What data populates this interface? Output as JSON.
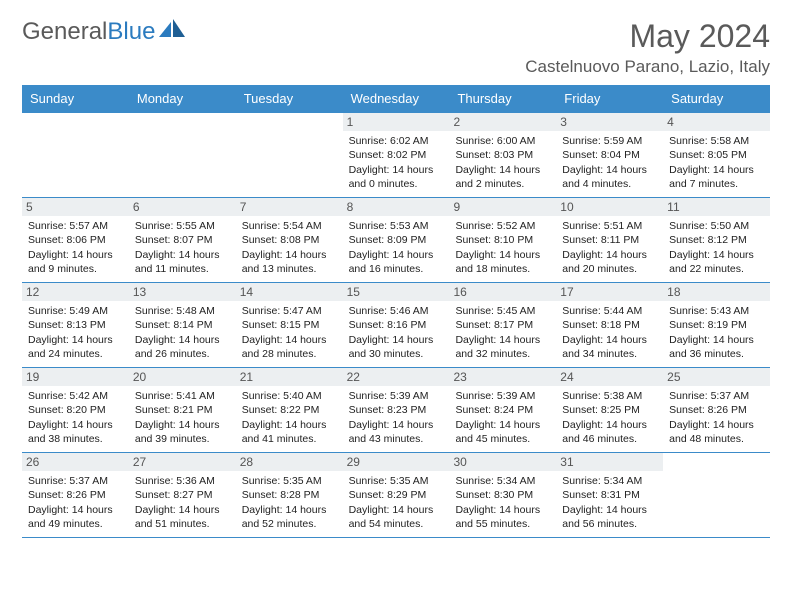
{
  "brand": {
    "part1": "General",
    "part2": "Blue"
  },
  "title": "May 2024",
  "location": "Castelnuovo Parano, Lazio, Italy",
  "colors": {
    "header_bg": "#3b8bc9",
    "header_text": "#ffffff",
    "daynum_bg": "#eceff1",
    "border": "#3b8bc9",
    "title_color": "#5a5a5a"
  },
  "weekdays": [
    "Sunday",
    "Monday",
    "Tuesday",
    "Wednesday",
    "Thursday",
    "Friday",
    "Saturday"
  ],
  "weeks": [
    [
      null,
      null,
      null,
      {
        "n": "1",
        "sr": "Sunrise: 6:02 AM",
        "ss": "Sunset: 8:02 PM",
        "d1": "Daylight: 14 hours",
        "d2": "and 0 minutes."
      },
      {
        "n": "2",
        "sr": "Sunrise: 6:00 AM",
        "ss": "Sunset: 8:03 PM",
        "d1": "Daylight: 14 hours",
        "d2": "and 2 minutes."
      },
      {
        "n": "3",
        "sr": "Sunrise: 5:59 AM",
        "ss": "Sunset: 8:04 PM",
        "d1": "Daylight: 14 hours",
        "d2": "and 4 minutes."
      },
      {
        "n": "4",
        "sr": "Sunrise: 5:58 AM",
        "ss": "Sunset: 8:05 PM",
        "d1": "Daylight: 14 hours",
        "d2": "and 7 minutes."
      }
    ],
    [
      {
        "n": "5",
        "sr": "Sunrise: 5:57 AM",
        "ss": "Sunset: 8:06 PM",
        "d1": "Daylight: 14 hours",
        "d2": "and 9 minutes."
      },
      {
        "n": "6",
        "sr": "Sunrise: 5:55 AM",
        "ss": "Sunset: 8:07 PM",
        "d1": "Daylight: 14 hours",
        "d2": "and 11 minutes."
      },
      {
        "n": "7",
        "sr": "Sunrise: 5:54 AM",
        "ss": "Sunset: 8:08 PM",
        "d1": "Daylight: 14 hours",
        "d2": "and 13 minutes."
      },
      {
        "n": "8",
        "sr": "Sunrise: 5:53 AM",
        "ss": "Sunset: 8:09 PM",
        "d1": "Daylight: 14 hours",
        "d2": "and 16 minutes."
      },
      {
        "n": "9",
        "sr": "Sunrise: 5:52 AM",
        "ss": "Sunset: 8:10 PM",
        "d1": "Daylight: 14 hours",
        "d2": "and 18 minutes."
      },
      {
        "n": "10",
        "sr": "Sunrise: 5:51 AM",
        "ss": "Sunset: 8:11 PM",
        "d1": "Daylight: 14 hours",
        "d2": "and 20 minutes."
      },
      {
        "n": "11",
        "sr": "Sunrise: 5:50 AM",
        "ss": "Sunset: 8:12 PM",
        "d1": "Daylight: 14 hours",
        "d2": "and 22 minutes."
      }
    ],
    [
      {
        "n": "12",
        "sr": "Sunrise: 5:49 AM",
        "ss": "Sunset: 8:13 PM",
        "d1": "Daylight: 14 hours",
        "d2": "and 24 minutes."
      },
      {
        "n": "13",
        "sr": "Sunrise: 5:48 AM",
        "ss": "Sunset: 8:14 PM",
        "d1": "Daylight: 14 hours",
        "d2": "and 26 minutes."
      },
      {
        "n": "14",
        "sr": "Sunrise: 5:47 AM",
        "ss": "Sunset: 8:15 PM",
        "d1": "Daylight: 14 hours",
        "d2": "and 28 minutes."
      },
      {
        "n": "15",
        "sr": "Sunrise: 5:46 AM",
        "ss": "Sunset: 8:16 PM",
        "d1": "Daylight: 14 hours",
        "d2": "and 30 minutes."
      },
      {
        "n": "16",
        "sr": "Sunrise: 5:45 AM",
        "ss": "Sunset: 8:17 PM",
        "d1": "Daylight: 14 hours",
        "d2": "and 32 minutes."
      },
      {
        "n": "17",
        "sr": "Sunrise: 5:44 AM",
        "ss": "Sunset: 8:18 PM",
        "d1": "Daylight: 14 hours",
        "d2": "and 34 minutes."
      },
      {
        "n": "18",
        "sr": "Sunrise: 5:43 AM",
        "ss": "Sunset: 8:19 PM",
        "d1": "Daylight: 14 hours",
        "d2": "and 36 minutes."
      }
    ],
    [
      {
        "n": "19",
        "sr": "Sunrise: 5:42 AM",
        "ss": "Sunset: 8:20 PM",
        "d1": "Daylight: 14 hours",
        "d2": "and 38 minutes."
      },
      {
        "n": "20",
        "sr": "Sunrise: 5:41 AM",
        "ss": "Sunset: 8:21 PM",
        "d1": "Daylight: 14 hours",
        "d2": "and 39 minutes."
      },
      {
        "n": "21",
        "sr": "Sunrise: 5:40 AM",
        "ss": "Sunset: 8:22 PM",
        "d1": "Daylight: 14 hours",
        "d2": "and 41 minutes."
      },
      {
        "n": "22",
        "sr": "Sunrise: 5:39 AM",
        "ss": "Sunset: 8:23 PM",
        "d1": "Daylight: 14 hours",
        "d2": "and 43 minutes."
      },
      {
        "n": "23",
        "sr": "Sunrise: 5:39 AM",
        "ss": "Sunset: 8:24 PM",
        "d1": "Daylight: 14 hours",
        "d2": "and 45 minutes."
      },
      {
        "n": "24",
        "sr": "Sunrise: 5:38 AM",
        "ss": "Sunset: 8:25 PM",
        "d1": "Daylight: 14 hours",
        "d2": "and 46 minutes."
      },
      {
        "n": "25",
        "sr": "Sunrise: 5:37 AM",
        "ss": "Sunset: 8:26 PM",
        "d1": "Daylight: 14 hours",
        "d2": "and 48 minutes."
      }
    ],
    [
      {
        "n": "26",
        "sr": "Sunrise: 5:37 AM",
        "ss": "Sunset: 8:26 PM",
        "d1": "Daylight: 14 hours",
        "d2": "and 49 minutes."
      },
      {
        "n": "27",
        "sr": "Sunrise: 5:36 AM",
        "ss": "Sunset: 8:27 PM",
        "d1": "Daylight: 14 hours",
        "d2": "and 51 minutes."
      },
      {
        "n": "28",
        "sr": "Sunrise: 5:35 AM",
        "ss": "Sunset: 8:28 PM",
        "d1": "Daylight: 14 hours",
        "d2": "and 52 minutes."
      },
      {
        "n": "29",
        "sr": "Sunrise: 5:35 AM",
        "ss": "Sunset: 8:29 PM",
        "d1": "Daylight: 14 hours",
        "d2": "and 54 minutes."
      },
      {
        "n": "30",
        "sr": "Sunrise: 5:34 AM",
        "ss": "Sunset: 8:30 PM",
        "d1": "Daylight: 14 hours",
        "d2": "and 55 minutes."
      },
      {
        "n": "31",
        "sr": "Sunrise: 5:34 AM",
        "ss": "Sunset: 8:31 PM",
        "d1": "Daylight: 14 hours",
        "d2": "and 56 minutes."
      },
      null
    ]
  ]
}
